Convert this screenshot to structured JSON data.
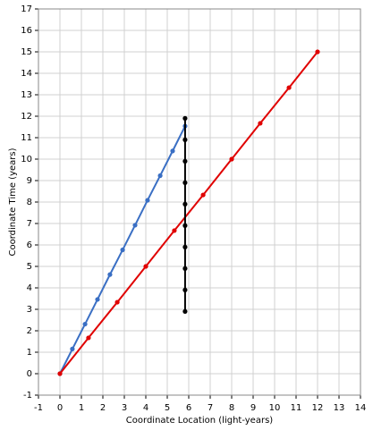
{
  "chart_data": {
    "type": "line",
    "x_label": "Coordinate Location (light-years)",
    "y_label": "Coordinate Time (years)",
    "xlim": [
      -1,
      14
    ],
    "ylim": [
      -1,
      17
    ],
    "xticks": [
      -1,
      0,
      1,
      2,
      3,
      4,
      5,
      6,
      7,
      8,
      9,
      10,
      11,
      12,
      13,
      14
    ],
    "yticks": [
      -1,
      0,
      1,
      2,
      3,
      4,
      5,
      6,
      7,
      8,
      9,
      10,
      11,
      12,
      13,
      14,
      15,
      16,
      17
    ],
    "grid": true,
    "series": [
      {
        "color": "#3a6fc4",
        "x": [
          0,
          0.58,
          1.17,
          1.75,
          2.33,
          2.92,
          3.5,
          4.08,
          4.67,
          5.25,
          5.83
        ],
        "values": [
          0,
          1.15,
          2.31,
          3.46,
          4.62,
          5.77,
          6.92,
          8.08,
          9.23,
          10.38,
          11.54
        ]
      },
      {
        "color": "#e00000",
        "x": [
          0,
          1.33,
          2.67,
          4,
          5.33,
          6.67,
          8,
          9.33,
          10.67,
          12
        ],
        "values": [
          0,
          1.67,
          3.33,
          5,
          6.67,
          8.33,
          10,
          11.67,
          13.33,
          15
        ]
      },
      {
        "color": "#000000",
        "x": [
          5.83,
          5.83,
          5.83,
          5.83,
          5.83,
          5.83,
          5.83,
          5.83,
          5.83,
          5.83
        ],
        "values": [
          2.9,
          3.9,
          4.9,
          5.9,
          6.9,
          7.9,
          8.9,
          9.9,
          10.9,
          11.9
        ]
      }
    ]
  }
}
